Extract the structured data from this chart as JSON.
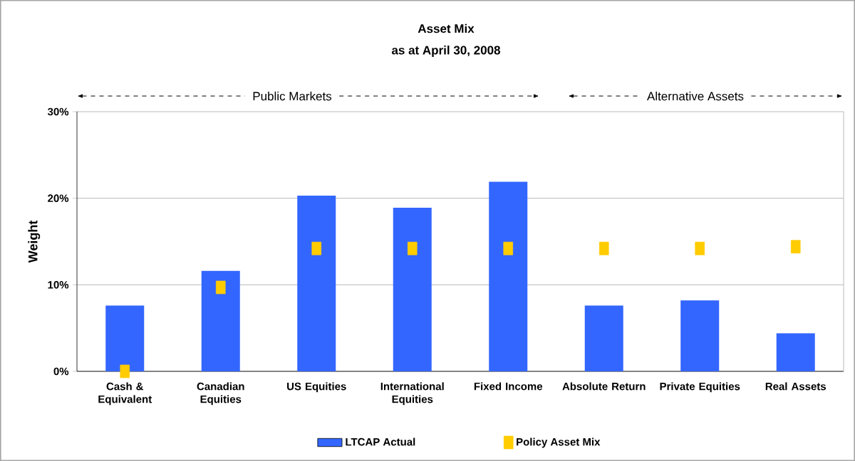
{
  "chart_data": {
    "type": "bar",
    "title": "Asset Mix",
    "subtitle": "as at April 30, 2008",
    "ylabel": "Weight",
    "categories": [
      "Cash & Equivalent",
      "Canadian Equities",
      "US Equities",
      "International Equities",
      "Fixed Income",
      "Absolute Return",
      "Private Equities",
      "Real Assets"
    ],
    "series": [
      {
        "name": "LTCAP Actual",
        "color": "#3366ff",
        "values": [
          7.6,
          11.6,
          20.3,
          18.9,
          21.9,
          7.6,
          8.2,
          4.4
        ]
      },
      {
        "name": "Policy Asset Mix",
        "type": "scatter",
        "marker": "square",
        "color": "#ffcc00",
        "values": [
          0,
          9.7,
          14.2,
          14.2,
          14.2,
          14.2,
          14.2,
          14.4
        ]
      }
    ],
    "ylim": [
      0,
      30
    ],
    "yticks": [
      {
        "value": 0,
        "label": "0%"
      },
      {
        "value": 10,
        "label": "10%"
      },
      {
        "value": 20,
        "label": "20%"
      },
      {
        "value": 30,
        "label": "30%"
      }
    ],
    "grid": "y",
    "legend": "bottom",
    "annotations": [
      "Public Markets",
      "Alternative Assets"
    ]
  }
}
